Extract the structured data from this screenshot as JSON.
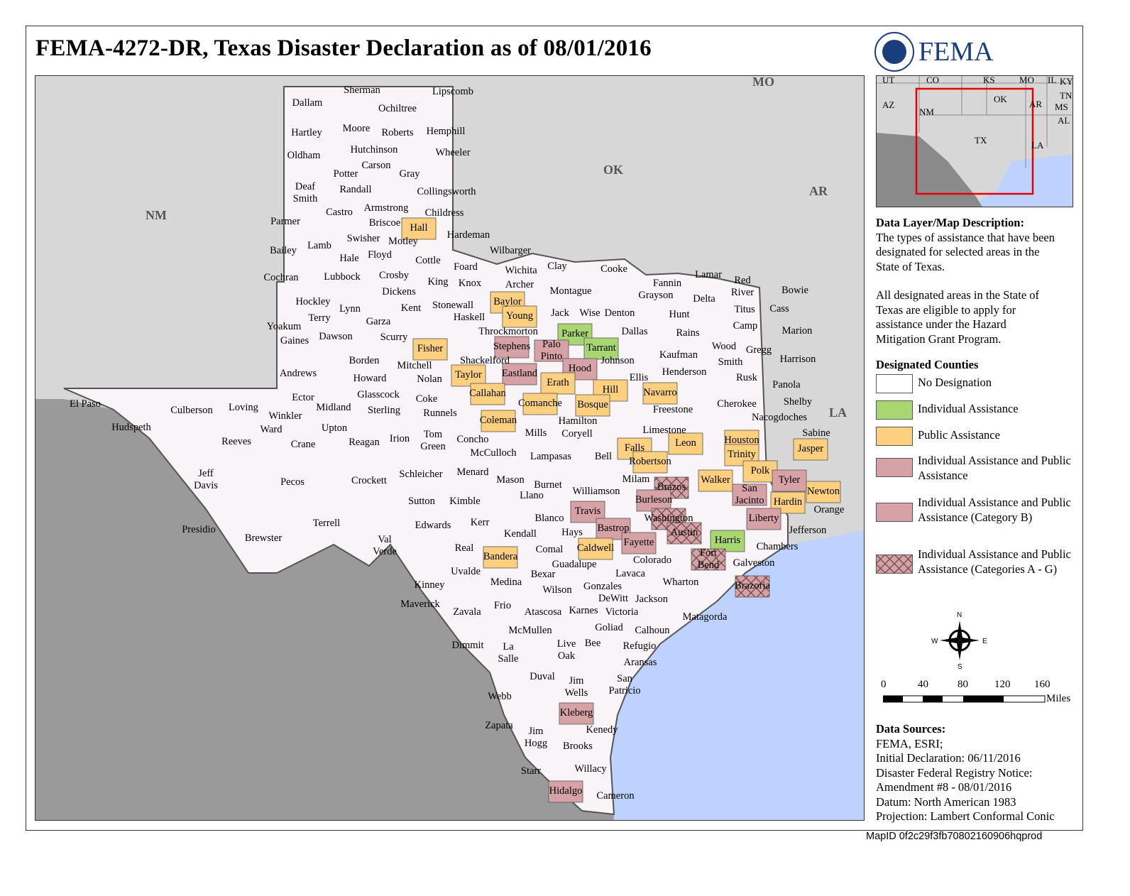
{
  "title": "FEMA-4272-DR, Texas Disaster Declaration as of 08/01/2016",
  "agency": "FEMA",
  "colors": {
    "no_designation": "#f9f4f8",
    "individual": "#a8d671",
    "public": "#fdd080",
    "ia_pa": "#d6a2a6",
    "neighbor": "#d7d7d7",
    "mexico": "#9a9a9a",
    "water": "#bed2ff"
  },
  "state_labels": [
    "NM",
    "OK",
    "AR",
    "LA",
    "MO"
  ],
  "inset": {
    "labels": [
      "UT",
      "CO",
      "KS",
      "MO",
      "IL",
      "KY",
      "TN",
      "AZ",
      "NM",
      "OK",
      "AR",
      "MS",
      "AL",
      "TX",
      "LA"
    ]
  },
  "description": {
    "heading": "Data Layer/Map Description:",
    "para1": "The types of assistance that have been designated for selected areas in the State of Texas.",
    "para2": "All designated areas in the State of Texas are eligible to apply for assistance under the Hazard Mitigation Grant Program."
  },
  "legend": {
    "heading": "Designated Counties",
    "items": [
      {
        "label": "No Designation",
        "color": "#f9f4f8",
        "hatch": false
      },
      {
        "label": "Individual Assistance",
        "color": "#a8d671",
        "hatch": false
      },
      {
        "label": "Public Assistance",
        "color": "#fdd080",
        "hatch": false
      },
      {
        "label": "Individual Assistance and Public Assistance",
        "color": "#d6a2a6",
        "hatch": false
      },
      {
        "label": "Individual Assistance and Public Assistance (Category B)",
        "color": "#d6a2a6",
        "hatch": false
      },
      {
        "label": "Individual Assistance and Public Assistance (Categories A - G)",
        "color": "#d6a2a6",
        "hatch": true
      }
    ]
  },
  "compass": {
    "n": "N",
    "s": "S",
    "e": "E",
    "w": "W"
  },
  "scale": {
    "ticks": [
      "0",
      "40",
      "80",
      "120",
      "160"
    ],
    "unit": "Miles"
  },
  "sources": {
    "heading": "Data Sources:",
    "lines": [
      "FEMA, ESRI;",
      "Initial Declaration: 06/11/2016",
      "Disaster Federal Registry Notice:",
      "Amendment #8 - 08/01/2016",
      "Datum: North American 1983",
      "Projection: Lambert Conformal Conic"
    ]
  },
  "map_id": "MapID 0f2c29f3fb70802160906hqprod",
  "counties": [
    {
      "name": "Sherman",
      "status": "none"
    },
    {
      "name": "Lipscomb",
      "status": "none"
    },
    {
      "name": "Dallam",
      "status": "none"
    },
    {
      "name": "Ochiltree",
      "status": "none"
    },
    {
      "name": "Hartley",
      "status": "none"
    },
    {
      "name": "Moore",
      "status": "none"
    },
    {
      "name": "Roberts",
      "status": "none"
    },
    {
      "name": "Hemphill",
      "status": "none"
    },
    {
      "name": "Oldham",
      "status": "none"
    },
    {
      "name": "Hutchinson",
      "status": "none"
    },
    {
      "name": "Wheeler",
      "status": "none"
    },
    {
      "name": "Carson",
      "status": "none"
    },
    {
      "name": "Potter",
      "status": "none"
    },
    {
      "name": "Gray",
      "status": "none"
    },
    {
      "name": "Deaf Smith",
      "status": "none"
    },
    {
      "name": "Randall",
      "status": "none"
    },
    {
      "name": "Collingsworth",
      "status": "none"
    },
    {
      "name": "Armstrong",
      "status": "none"
    },
    {
      "name": "Castro",
      "status": "none"
    },
    {
      "name": "Childress",
      "status": "none"
    },
    {
      "name": "Parmer",
      "status": "none"
    },
    {
      "name": "Briscoe",
      "status": "none"
    },
    {
      "name": "Hall",
      "status": "public"
    },
    {
      "name": "Hardeman",
      "status": "none"
    },
    {
      "name": "Swisher",
      "status": "none"
    },
    {
      "name": "Motley",
      "status": "none"
    },
    {
      "name": "Bailey",
      "status": "none"
    },
    {
      "name": "Lamb",
      "status": "none"
    },
    {
      "name": "Hale",
      "status": "none"
    },
    {
      "name": "Floyd",
      "status": "none"
    },
    {
      "name": "Wilbarger",
      "status": "none"
    },
    {
      "name": "Cottle",
      "status": "none"
    },
    {
      "name": "Foard",
      "status": "none"
    },
    {
      "name": "Wichita",
      "status": "none"
    },
    {
      "name": "Clay",
      "status": "none"
    },
    {
      "name": "Cooke",
      "status": "none"
    },
    {
      "name": "Lamar",
      "status": "none"
    },
    {
      "name": "Red River",
      "status": "none"
    },
    {
      "name": "Bowie",
      "status": "none"
    },
    {
      "name": "Cochran",
      "status": "none"
    },
    {
      "name": "Lubbock",
      "status": "none"
    },
    {
      "name": "Crosby",
      "status": "none"
    },
    {
      "name": "King",
      "status": "none"
    },
    {
      "name": "Knox",
      "status": "none"
    },
    {
      "name": "Archer",
      "status": "none"
    },
    {
      "name": "Fannin",
      "status": "none"
    },
    {
      "name": "Grayson",
      "status": "none"
    },
    {
      "name": "Montague",
      "status": "none"
    },
    {
      "name": "Hockley",
      "status": "none"
    },
    {
      "name": "Dickens",
      "status": "none"
    },
    {
      "name": "Baylor",
      "status": "public"
    },
    {
      "name": "Delta",
      "status": "none"
    },
    {
      "name": "Lynn",
      "status": "none"
    },
    {
      "name": "Kent",
      "status": "none"
    },
    {
      "name": "Stonewall",
      "status": "none"
    },
    {
      "name": "Titus",
      "status": "none"
    },
    {
      "name": "Cass",
      "status": "none"
    },
    {
      "name": "Terry",
      "status": "none"
    },
    {
      "name": "Garza",
      "status": "none"
    },
    {
      "name": "Haskell",
      "status": "none"
    },
    {
      "name": "Young",
      "status": "public"
    },
    {
      "name": "Jack",
      "status": "none"
    },
    {
      "name": "Wise",
      "status": "none"
    },
    {
      "name": "Denton",
      "status": "none"
    },
    {
      "name": "Hunt",
      "status": "none"
    },
    {
      "name": "Camp",
      "status": "none"
    },
    {
      "name": "Yoakum",
      "status": "none"
    },
    {
      "name": "Dawson",
      "status": "none"
    },
    {
      "name": "Scurry",
      "status": "none"
    },
    {
      "name": "Throckmorton",
      "status": "none"
    },
    {
      "name": "Parker",
      "status": "individual"
    },
    {
      "name": "Dallas",
      "status": "none"
    },
    {
      "name": "Rains",
      "status": "none"
    },
    {
      "name": "Marion",
      "status": "none"
    },
    {
      "name": "Gaines",
      "status": "none"
    },
    {
      "name": "Fisher",
      "status": "public"
    },
    {
      "name": "Stephens",
      "status": "ia_pa"
    },
    {
      "name": "Palo Pinto",
      "status": "ia_pa"
    },
    {
      "name": "Tarrant",
      "status": "individual"
    },
    {
      "name": "Wood",
      "status": "none"
    },
    {
      "name": "Gregg",
      "status": "none"
    },
    {
      "name": "Kaufman",
      "status": "none"
    },
    {
      "name": "Borden",
      "status": "none"
    },
    {
      "name": "Shackelford",
      "status": "none"
    },
    {
      "name": "Johnson",
      "status": "none"
    },
    {
      "name": "Harrison",
      "status": "none"
    },
    {
      "name": "Smith",
      "status": "none"
    },
    {
      "name": "Andrews",
      "status": "none"
    },
    {
      "name": "Mitchell",
      "status": "none"
    },
    {
      "name": "Hood",
      "status": "ia_pa"
    },
    {
      "name": "Howard",
      "status": "none"
    },
    {
      "name": "Nolan",
      "status": "none"
    },
    {
      "name": "Taylor",
      "status": "public"
    },
    {
      "name": "Eastland",
      "status": "ia_pa"
    },
    {
      "name": "Ellis",
      "status": "none"
    },
    {
      "name": "Henderson",
      "status": "none"
    },
    {
      "name": "Rusk",
      "status": "none"
    },
    {
      "name": "Erath",
      "status": "public"
    },
    {
      "name": "Panola",
      "status": "none"
    },
    {
      "name": "Hill",
      "status": "public"
    },
    {
      "name": "Navarro",
      "status": "public"
    },
    {
      "name": "Glasscock",
      "status": "none"
    },
    {
      "name": "Ector",
      "status": "none"
    },
    {
      "name": "Callahan",
      "status": "public"
    },
    {
      "name": "Coke",
      "status": "none"
    },
    {
      "name": "Comanche",
      "status": "public"
    },
    {
      "name": "Bosque",
      "status": "public"
    },
    {
      "name": "Shelby",
      "status": "none"
    },
    {
      "name": "Cherokee",
      "status": "none"
    },
    {
      "name": "El Paso",
      "status": "none"
    },
    {
      "name": "Culberson",
      "status": "none"
    },
    {
      "name": "Loving",
      "status": "none"
    },
    {
      "name": "Midland",
      "status": "none"
    },
    {
      "name": "Sterling",
      "status": "none"
    },
    {
      "name": "Freestone",
      "status": "none"
    },
    {
      "name": "Runnels",
      "status": "none"
    },
    {
      "name": "Winkler",
      "status": "none"
    },
    {
      "name": "Hudspeth",
      "status": "none"
    },
    {
      "name": "Coleman",
      "status": "public"
    },
    {
      "name": "Hamilton",
      "status": "none"
    },
    {
      "name": "Nacogdoches",
      "status": "none"
    },
    {
      "name": "Ward",
      "status": "none"
    },
    {
      "name": "Upton",
      "status": "none"
    },
    {
      "name": "Mills",
      "status": "none"
    },
    {
      "name": "Coryell",
      "status": "none"
    },
    {
      "name": "Limestone",
      "status": "none"
    },
    {
      "name": "Houston",
      "status": "public"
    },
    {
      "name": "Sabine",
      "status": "none"
    },
    {
      "name": "Reeves",
      "status": "none"
    },
    {
      "name": "Crane",
      "status": "none"
    },
    {
      "name": "Reagan",
      "status": "none"
    },
    {
      "name": "Irion",
      "status": "none"
    },
    {
      "name": "Tom Green",
      "status": "none"
    },
    {
      "name": "Concho",
      "status": "none"
    },
    {
      "name": "Leon",
      "status": "public"
    },
    {
      "name": "Falls",
      "status": "public"
    },
    {
      "name": "Jasper",
      "status": "public"
    },
    {
      "name": "Trinity",
      "status": "public"
    },
    {
      "name": "Lampasas",
      "status": "none"
    },
    {
      "name": "McCulloch",
      "status": "none"
    },
    {
      "name": "Bell",
      "status": "none"
    },
    {
      "name": "Robertson",
      "status": "public"
    },
    {
      "name": "Jeff Davis",
      "status": "none"
    },
    {
      "name": "Pecos",
      "status": "none"
    },
    {
      "name": "Menard",
      "status": "none"
    },
    {
      "name": "Schleicher",
      "status": "none"
    },
    {
      "name": "Polk",
      "status": "public"
    },
    {
      "name": "Tyler",
      "status": "ia_pa"
    },
    {
      "name": "Crockett",
      "status": "none"
    },
    {
      "name": "Mason",
      "status": "none"
    },
    {
      "name": "Milam",
      "status": "none"
    },
    {
      "name": "Walker",
      "status": "public"
    },
    {
      "name": "Burnet",
      "status": "none"
    },
    {
      "name": "Brazos",
      "status": "hatch"
    },
    {
      "name": "San Jacinto",
      "status": "ia_pa"
    },
    {
      "name": "Newton",
      "status": "public"
    },
    {
      "name": "Llano",
      "status": "none"
    },
    {
      "name": "Williamson",
      "status": "none"
    },
    {
      "name": "Sutton",
      "status": "none"
    },
    {
      "name": "Kimble",
      "status": "none"
    },
    {
      "name": "Burleson",
      "status": "ia_pa"
    },
    {
      "name": "Hardin",
      "status": "public"
    },
    {
      "name": "Orange",
      "status": "none"
    },
    {
      "name": "Terrell",
      "status": "none"
    },
    {
      "name": "Travis",
      "status": "ia_pa"
    },
    {
      "name": "Washington",
      "status": "hatch"
    },
    {
      "name": "Liberty",
      "status": "ia_pa"
    },
    {
      "name": "Presidio",
      "status": "none"
    },
    {
      "name": "Edwards",
      "status": "none"
    },
    {
      "name": "Kerr",
      "status": "none"
    },
    {
      "name": "Blanco",
      "status": "none"
    },
    {
      "name": "Bastrop",
      "status": "ia_pa"
    },
    {
      "name": "Austin",
      "status": "hatch"
    },
    {
      "name": "Jefferson",
      "status": "none"
    },
    {
      "name": "Val Verde",
      "status": "none"
    },
    {
      "name": "Brewster",
      "status": "none"
    },
    {
      "name": "Kendall",
      "status": "none"
    },
    {
      "name": "Hays",
      "status": "none"
    },
    {
      "name": "Harris",
      "status": "individual"
    },
    {
      "name": "Fayette",
      "status": "ia_pa"
    },
    {
      "name": "Real",
      "status": "none"
    },
    {
      "name": "Bandera",
      "status": "public"
    },
    {
      "name": "Caldwell",
      "status": "public"
    },
    {
      "name": "Chambers",
      "status": "none"
    },
    {
      "name": "Comal",
      "status": "none"
    },
    {
      "name": "Colorado",
      "status": "none"
    },
    {
      "name": "Fort Bend",
      "status": "hatch"
    },
    {
      "name": "Galveston",
      "status": "none"
    },
    {
      "name": "Guadalupe",
      "status": "none"
    },
    {
      "name": "Uvalde",
      "status": "none"
    },
    {
      "name": "Lavaca",
      "status": "none"
    },
    {
      "name": "Bexar",
      "status": "none"
    },
    {
      "name": "Medina",
      "status": "none"
    },
    {
      "name": "Wharton",
      "status": "none"
    },
    {
      "name": "Kinney",
      "status": "none"
    },
    {
      "name": "Wilson",
      "status": "none"
    },
    {
      "name": "Gonzales",
      "status": "none"
    },
    {
      "name": "Brazoria",
      "status": "hatch"
    },
    {
      "name": "DeWitt",
      "status": "none"
    },
    {
      "name": "Jackson",
      "status": "none"
    },
    {
      "name": "Maverick",
      "status": "none"
    },
    {
      "name": "Frio",
      "status": "none"
    },
    {
      "name": "Zavala",
      "status": "none"
    },
    {
      "name": "Atascosa",
      "status": "none"
    },
    {
      "name": "Karnes",
      "status": "none"
    },
    {
      "name": "Victoria",
      "status": "none"
    },
    {
      "name": "Matagorda",
      "status": "none"
    },
    {
      "name": "Goliad",
      "status": "none"
    },
    {
      "name": "McMullen",
      "status": "none"
    },
    {
      "name": "Calhoun",
      "status": "none"
    },
    {
      "name": "Dimmit",
      "status": "none"
    },
    {
      "name": "La Salle",
      "status": "none"
    },
    {
      "name": "Live Oak",
      "status": "none"
    },
    {
      "name": "Bee",
      "status": "none"
    },
    {
      "name": "Refugio",
      "status": "none"
    },
    {
      "name": "Aransas",
      "status": "none"
    },
    {
      "name": "Duval",
      "status": "none"
    },
    {
      "name": "San Patricio",
      "status": "none"
    },
    {
      "name": "Jim Wells",
      "status": "none"
    },
    {
      "name": "Webb",
      "status": "none"
    },
    {
      "name": "Kleberg",
      "status": "ia_pa"
    },
    {
      "name": "Zapata",
      "status": "none"
    },
    {
      "name": "Kenedy",
      "status": "none"
    },
    {
      "name": "Jim Hogg",
      "status": "none"
    },
    {
      "name": "Brooks",
      "status": "none"
    },
    {
      "name": "Starr",
      "status": "none"
    },
    {
      "name": "Willacy",
      "status": "none"
    },
    {
      "name": "Hidalgo",
      "status": "ia_pa"
    },
    {
      "name": "Cameron",
      "status": "none"
    }
  ]
}
